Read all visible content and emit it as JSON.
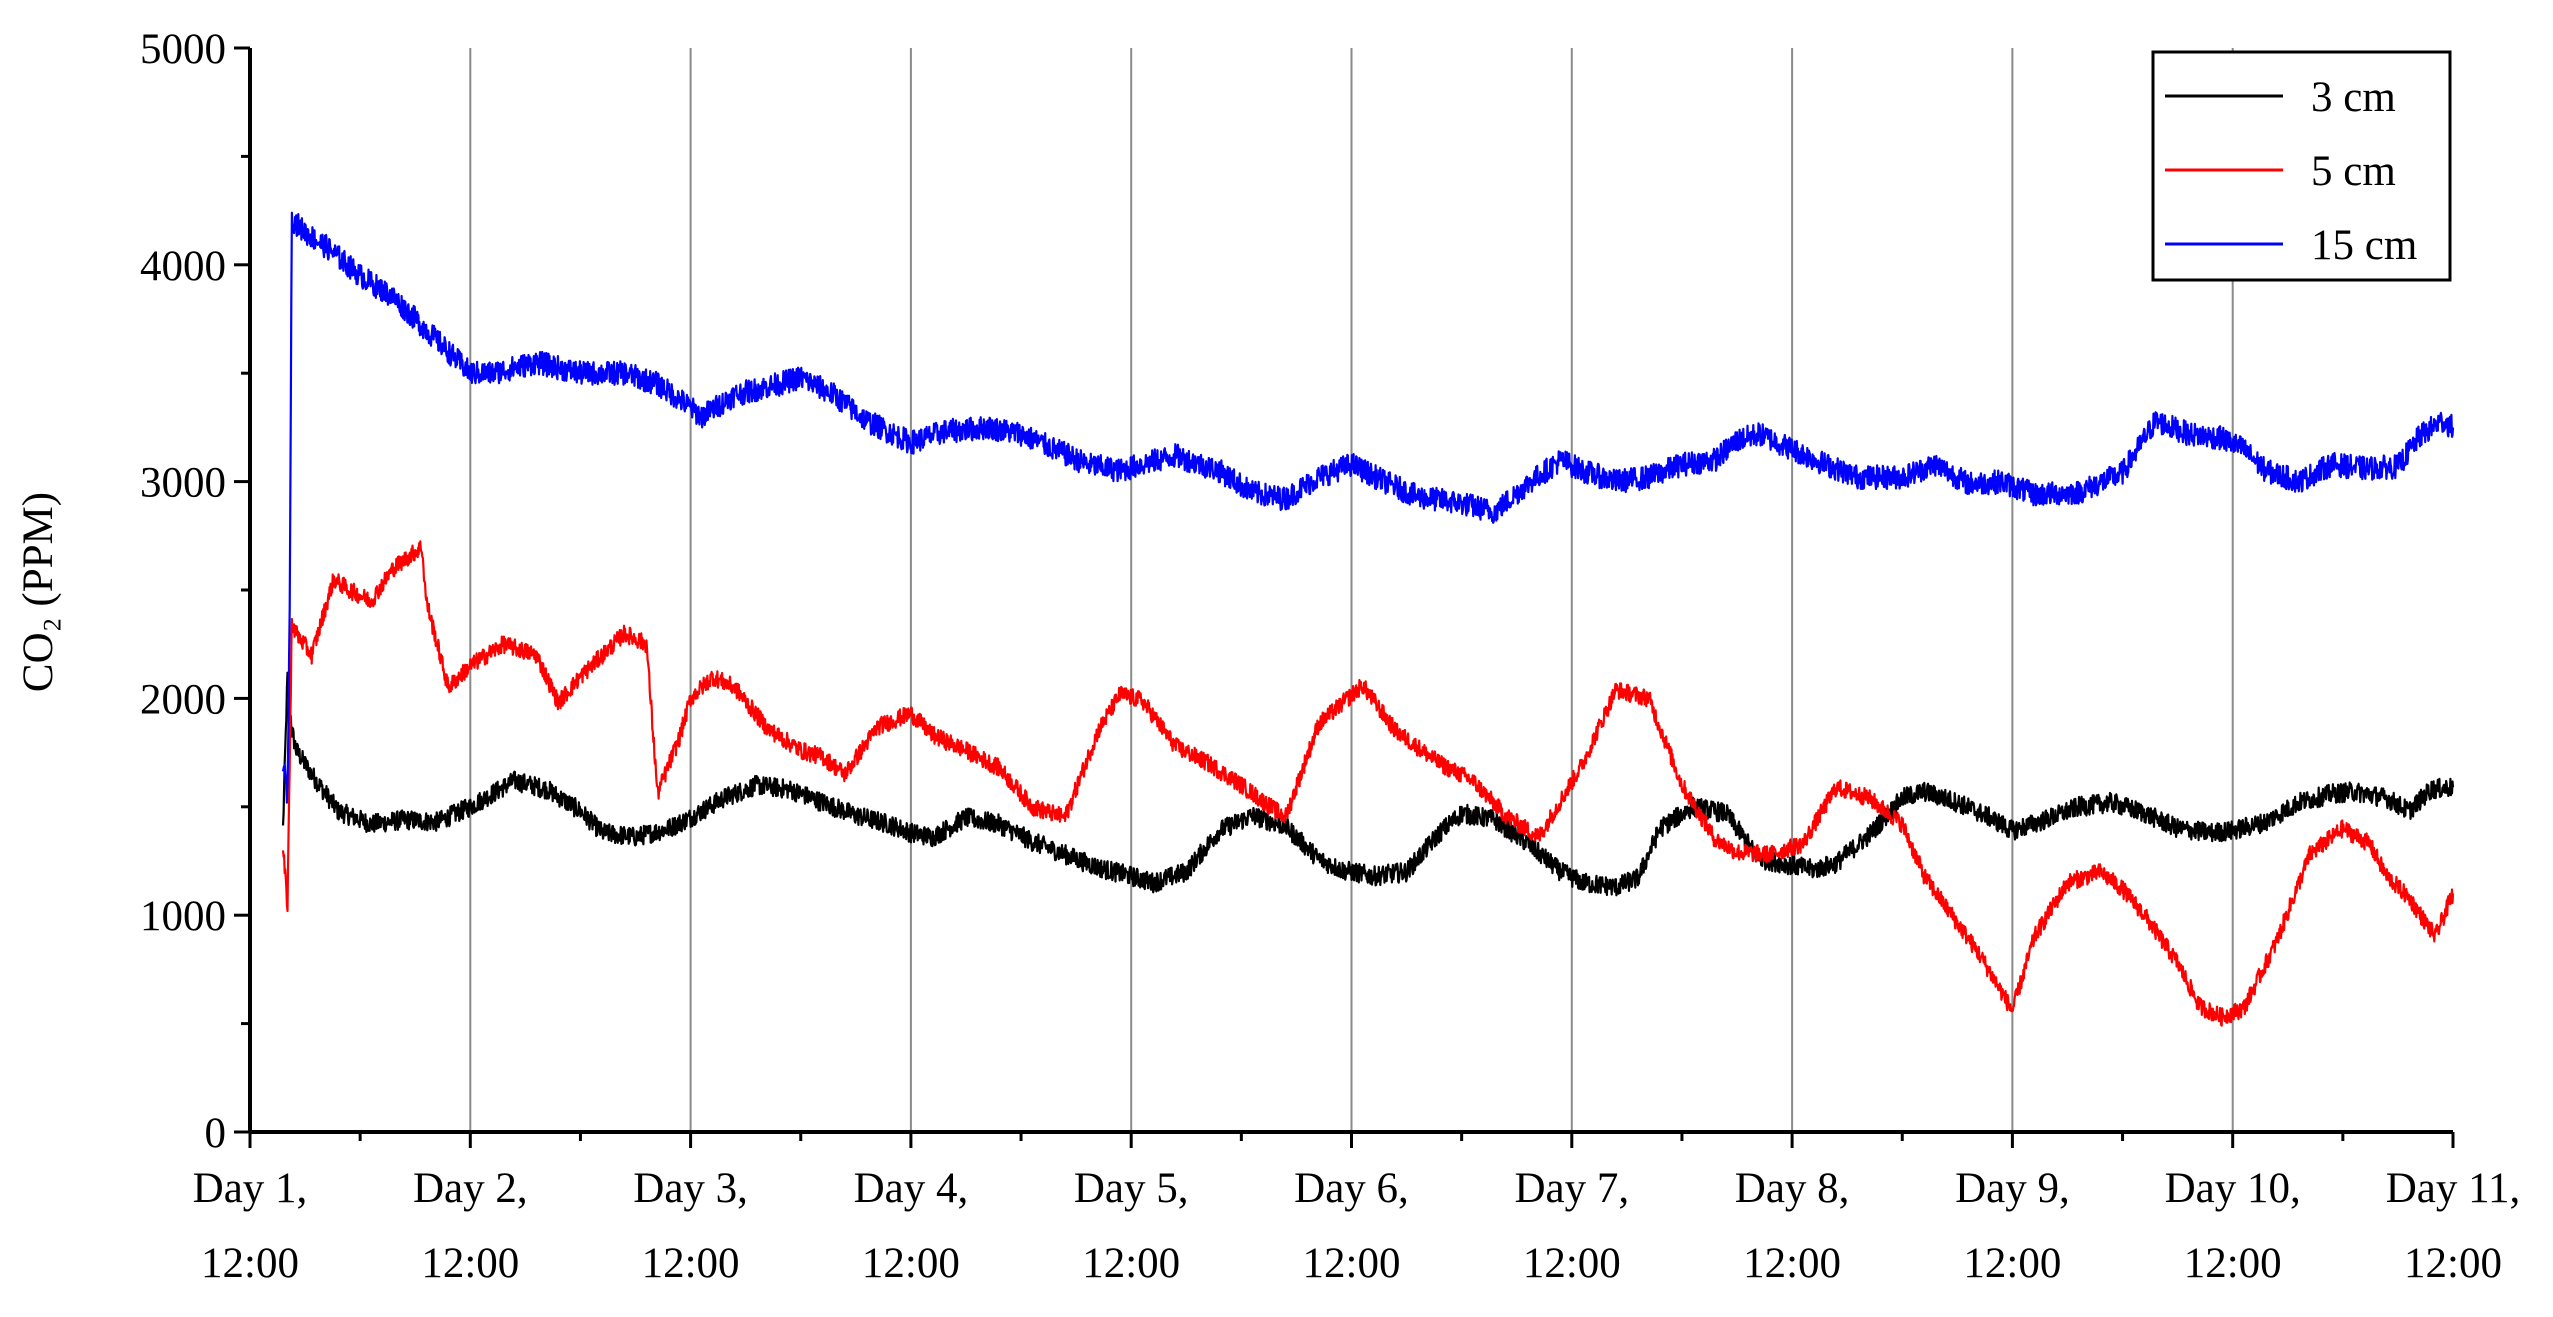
{
  "chart_data": {
    "type": "line",
    "title": "",
    "xlabel": "",
    "ylabel": "CO₂ (PPM)",
    "xlim": [
      0,
      10
    ],
    "ylim": [
      0,
      5000
    ],
    "yticks": [
      0,
      1000,
      2000,
      3000,
      4000,
      5000
    ],
    "yticks_labels": [
      "0",
      "1000",
      "2000",
      "3000",
      "4000",
      "5000"
    ],
    "x_tick_positions": [
      0,
      1,
      2,
      3,
      4,
      5,
      6,
      7,
      8,
      9,
      10
    ],
    "x_tick_labels": [
      [
        "Day 1,",
        "12:00"
      ],
      [
        "Day 2,",
        "12:00"
      ],
      [
        "Day 3,",
        "12:00"
      ],
      [
        "Day 4,",
        "12:00"
      ],
      [
        "Day 5,",
        "12:00"
      ],
      [
        "Day 6,",
        "12:00"
      ],
      [
        "Day 7,",
        "12:00"
      ],
      [
        "Day 8,",
        "12:00"
      ],
      [
        "Day 9,",
        "12:00"
      ],
      [
        "Day 10,",
        "12:00"
      ],
      [
        "Day 11,",
        "12:00"
      ]
    ],
    "grid": "vertical",
    "legend_position": "top-right",
    "series": [
      {
        "name": "3 cm",
        "color": "#000000",
        "noise": 45,
        "x": [
          0.15,
          0.17,
          0.19,
          0.21,
          0.28,
          0.4,
          0.55,
          0.7,
          0.85,
          1.0,
          1.1,
          1.2,
          1.35,
          1.5,
          1.6,
          1.75,
          1.9,
          2.0,
          2.15,
          2.3,
          2.45,
          2.6,
          2.75,
          2.9,
          3.0,
          3.1,
          3.25,
          3.4,
          3.55,
          3.7,
          3.85,
          4.0,
          4.1,
          4.25,
          4.4,
          4.55,
          4.7,
          4.85,
          4.95,
          5.1,
          5.25,
          5.4,
          5.5,
          5.65,
          5.8,
          5.95,
          6.05,
          6.2,
          6.3,
          6.4,
          6.55,
          6.7,
          6.85,
          7.0,
          7.1,
          7.2,
          7.35,
          7.5,
          7.6,
          7.75,
          7.9,
          8.0,
          8.15,
          8.3,
          8.45,
          8.6,
          8.75,
          8.9,
          9.0,
          9.15,
          9.3,
          9.45,
          9.55,
          9.7,
          9.8,
          9.9,
          10.0
        ],
        "values": [
          1400,
          2100,
          1850,
          1760,
          1650,
          1480,
          1420,
          1440,
          1430,
          1500,
          1560,
          1620,
          1580,
          1480,
          1380,
          1360,
          1400,
          1450,
          1540,
          1600,
          1580,
          1520,
          1460,
          1420,
          1380,
          1360,
          1450,
          1420,
          1340,
          1280,
          1220,
          1180,
          1150,
          1200,
          1390,
          1460,
          1410,
          1260,
          1210,
          1180,
          1200,
          1380,
          1470,
          1440,
          1330,
          1200,
          1150,
          1130,
          1170,
          1400,
          1500,
          1470,
          1260,
          1230,
          1210,
          1240,
          1370,
          1540,
          1570,
          1520,
          1450,
          1390,
          1440,
          1500,
          1520,
          1470,
          1400,
          1380,
          1390,
          1430,
          1520,
          1560,
          1570,
          1540,
          1480,
          1580,
          1590
        ]
      },
      {
        "name": "5 cm",
        "color": "#ff0000",
        "noise": 40,
        "x": [
          0.15,
          0.17,
          0.19,
          0.21,
          0.28,
          0.38,
          0.45,
          0.55,
          0.65,
          0.78,
          0.8,
          0.9,
          1.0,
          1.15,
          1.3,
          1.4,
          1.5,
          1.7,
          1.8,
          1.85,
          1.95,
          2.0,
          2.1,
          2.2,
          2.35,
          2.5,
          2.6,
          2.7,
          2.85,
          3.0,
          3.1,
          3.25,
          3.4,
          3.55,
          3.7,
          3.85,
          3.95,
          4.05,
          4.2,
          4.35,
          4.5,
          4.7,
          4.85,
          5.05,
          5.2,
          5.4,
          5.55,
          5.7,
          5.85,
          6.05,
          6.2,
          6.35,
          6.5,
          6.65,
          6.75,
          6.9,
          7.05,
          7.2,
          7.35,
          7.5,
          7.6,
          7.85,
          8.0,
          8.1,
          8.25,
          8.4,
          8.5,
          8.6,
          8.75,
          8.85,
          8.95,
          9.05,
          9.2,
          9.35,
          9.5,
          9.62,
          9.7,
          9.8,
          9.92,
          10.0
        ],
        "values": [
          1300,
          1050,
          2350,
          2300,
          2200,
          2550,
          2500,
          2450,
          2600,
          2700,
          2450,
          2050,
          2150,
          2250,
          2200,
          1980,
          2100,
          2300,
          2250,
          1560,
          1820,
          2000,
          2100,
          2050,
          1860,
          1760,
          1730,
          1650,
          1870,
          1930,
          1830,
          1760,
          1680,
          1500,
          1450,
          1850,
          2020,
          1990,
          1780,
          1700,
          1600,
          1450,
          1880,
          2060,
          1850,
          1700,
          1620,
          1460,
          1360,
          1700,
          2040,
          2000,
          1600,
          1350,
          1290,
          1280,
          1330,
          1590,
          1540,
          1420,
          1180,
          820,
          560,
          900,
          1150,
          1200,
          1120,
          1000,
          780,
          580,
          530,
          570,
          880,
          1280,
          1400,
          1330,
          1180,
          1080,
          900,
          1100
        ]
      },
      {
        "name": "15 cm",
        "color": "#0000ff",
        "noise": 55,
        "x": [
          0.15,
          0.17,
          0.18,
          0.19,
          0.2,
          0.25,
          0.35,
          0.5,
          0.65,
          0.8,
          0.9,
          1.0,
          1.1,
          1.3,
          1.5,
          1.7,
          1.85,
          1.95,
          2.05,
          2.2,
          2.4,
          2.5,
          2.65,
          2.8,
          3.0,
          3.15,
          3.35,
          3.5,
          3.65,
          3.8,
          3.95,
          4.05,
          4.2,
          4.4,
          4.55,
          4.7,
          4.85,
          5.0,
          5.15,
          5.3,
          5.5,
          5.65,
          5.8,
          5.95,
          6.05,
          6.2,
          6.35,
          6.5,
          6.65,
          6.75,
          6.85,
          7.0,
          7.15,
          7.3,
          7.5,
          7.65,
          7.8,
          7.95,
          8.1,
          8.3,
          8.5,
          8.65,
          8.8,
          8.95,
          9.05,
          9.15,
          9.3,
          9.45,
          9.6,
          9.75,
          9.85,
          9.95,
          10.0
        ],
        "values": [
          1700,
          1550,
          2400,
          4250,
          4200,
          4150,
          4080,
          3950,
          3850,
          3700,
          3600,
          3500,
          3500,
          3550,
          3500,
          3500,
          3450,
          3380,
          3300,
          3400,
          3450,
          3480,
          3400,
          3280,
          3180,
          3230,
          3250,
          3220,
          3150,
          3080,
          3050,
          3080,
          3120,
          3050,
          2950,
          2920,
          3020,
          3080,
          3000,
          2930,
          2900,
          2860,
          2990,
          3100,
          3050,
          3000,
          3020,
          3080,
          3100,
          3190,
          3220,
          3150,
          3080,
          3020,
          3020,
          3080,
          2990,
          3000,
          2940,
          2950,
          3040,
          3280,
          3220,
          3200,
          3150,
          3050,
          3000,
          3080,
          3060,
          3070,
          3210,
          3280,
          3250
        ]
      }
    ]
  }
}
